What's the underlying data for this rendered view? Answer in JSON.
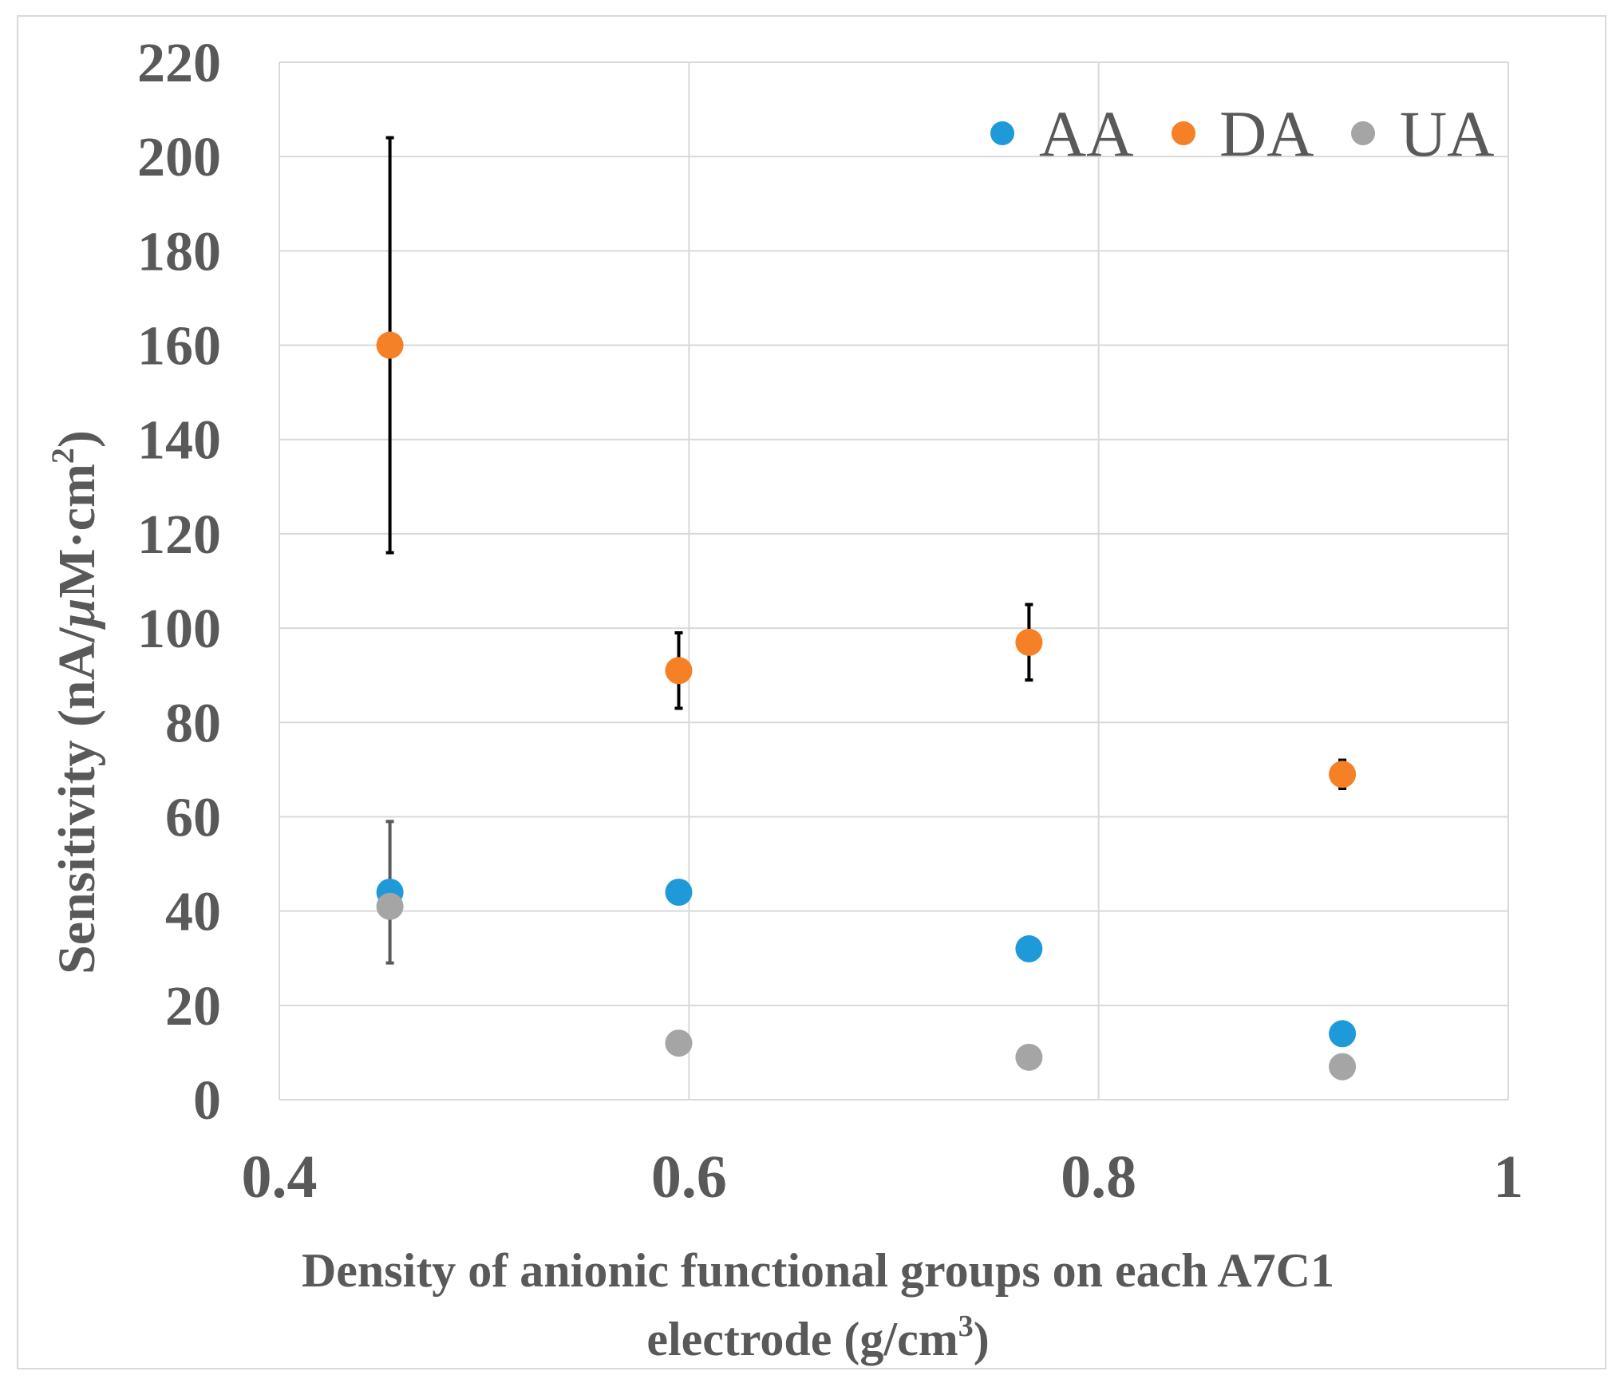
{
  "chart_data": {
    "type": "scatter",
    "title": "",
    "xlabel_line1": "Density of anionic functional groups on each A7C1",
    "xlabel_line2_main": "electrode (g/cm",
    "xlabel_line2_sup": "3",
    "xlabel_line2_end": ")",
    "ylabel_main": "Sensitivity (nA/",
    "ylabel_mu": "μ",
    "ylabel_mid": "M·cm",
    "ylabel_sup": "2",
    "ylabel_end": ")",
    "xlim": [
      0.4,
      1.0
    ],
    "ylim": [
      0,
      220
    ],
    "x_ticks": [
      0.4,
      0.6,
      0.8,
      1.0
    ],
    "x_tick_labels": [
      "0.4",
      "0.6",
      "0.8",
      "1"
    ],
    "y_ticks": [
      0,
      20,
      40,
      60,
      80,
      100,
      120,
      140,
      160,
      180,
      200,
      220
    ],
    "y_tick_labels": [
      "0",
      "20",
      "40",
      "60",
      "80",
      "100",
      "120",
      "140",
      "160",
      "180",
      "200",
      "220"
    ],
    "grid": true,
    "legend_position": "top-right",
    "series": [
      {
        "name": "AA",
        "color": "#1f9ad8",
        "x": [
          0.454,
          0.595,
          0.766,
          0.919
        ],
        "y": [
          44,
          44,
          32,
          14
        ],
        "err": [
          15,
          0,
          0,
          0
        ],
        "err_color": "#595959"
      },
      {
        "name": "DA",
        "color": "#f58025",
        "x": [
          0.454,
          0.595,
          0.766,
          0.919
        ],
        "y": [
          160,
          91,
          97,
          69
        ],
        "err": [
          44,
          8,
          8,
          3
        ],
        "err_color": "#000000"
      },
      {
        "name": "UA",
        "color": "#a5a5a5",
        "x": [
          0.454,
          0.595,
          0.766,
          0.919
        ],
        "y": [
          41,
          12,
          9,
          7
        ],
        "err": [
          0,
          0,
          0,
          0
        ],
        "err_color": "#595959"
      }
    ]
  }
}
